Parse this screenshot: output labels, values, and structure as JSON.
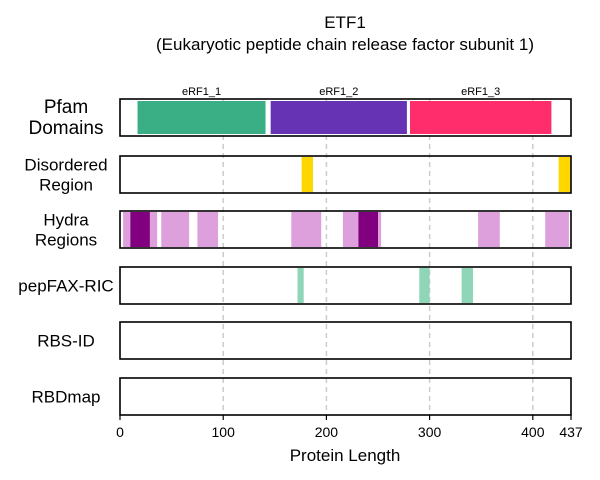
{
  "chart_data": {
    "type": "bar",
    "title": "ETF1",
    "subtitle": "(Eukaryotic peptide chain release factor subunit 1)",
    "xlabel": "Protein Length",
    "xlim": [
      0,
      437
    ],
    "xticks": [
      {
        "value": 0,
        "label": "0"
      },
      {
        "value": 100,
        "label": "100"
      },
      {
        "value": 200,
        "label": "200"
      },
      {
        "value": 300,
        "label": "300"
      },
      {
        "value": 400,
        "label": "400"
      },
      {
        "value": 437,
        "label": "437"
      }
    ],
    "gridlines": [
      100,
      200,
      300,
      400
    ],
    "tracks": [
      {
        "label_lines": [
          "Pfam",
          "Domains"
        ],
        "segments": [
          {
            "start": 17,
            "end": 141,
            "color": "#3aaf85",
            "label": "eRF1_1"
          },
          {
            "start": 146,
            "end": 278,
            "color": "#6633b5",
            "label": "eRF1_2"
          },
          {
            "start": 281,
            "end": 418,
            "color": "#ff2d6b",
            "label": "eRF1_3"
          }
        ]
      },
      {
        "label_lines": [
          "Disordered",
          "Region"
        ],
        "segments": [
          {
            "start": 176,
            "end": 187,
            "color": "#ffd700"
          },
          {
            "start": 425,
            "end": 437,
            "color": "#ffd700"
          }
        ]
      },
      {
        "label_lines": [
          "Hydra",
          "Regions"
        ],
        "segments": [
          {
            "start": 3,
            "end": 10,
            "color": "#dda0dd"
          },
          {
            "start": 10,
            "end": 29,
            "color": "#800080"
          },
          {
            "start": 29,
            "end": 36,
            "color": "#dda0dd"
          },
          {
            "start": 40,
            "end": 67,
            "color": "#dda0dd"
          },
          {
            "start": 75,
            "end": 95,
            "color": "#dda0dd"
          },
          {
            "start": 166,
            "end": 195,
            "color": "#dda0dd"
          },
          {
            "start": 216,
            "end": 231,
            "color": "#dda0dd"
          },
          {
            "start": 231,
            "end": 250,
            "color": "#800080"
          },
          {
            "start": 250,
            "end": 253,
            "color": "#dda0dd"
          },
          {
            "start": 347,
            "end": 368,
            "color": "#dda0dd"
          },
          {
            "start": 412,
            "end": 435,
            "color": "#dda0dd"
          }
        ]
      },
      {
        "label_lines": [
          "pepFAX-RIC"
        ],
        "segments": [
          {
            "start": 172,
            "end": 178,
            "color": "#8fd5b8"
          },
          {
            "start": 290,
            "end": 300,
            "color": "#8fd5b8"
          },
          {
            "start": 331,
            "end": 342,
            "color": "#8fd5b8"
          }
        ]
      },
      {
        "label_lines": [
          "RBS-ID"
        ],
        "segments": []
      },
      {
        "label_lines": [
          "RBDmap"
        ],
        "segments": []
      }
    ]
  }
}
